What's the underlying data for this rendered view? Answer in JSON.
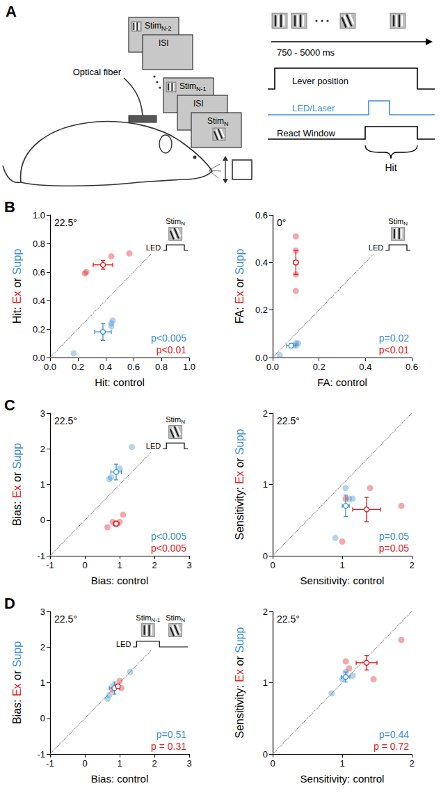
{
  "panel_a": {
    "letter": "A",
    "fiber_label": "Optical fiber",
    "screens": [
      {
        "text": "Stim",
        "sub": "N-2",
        "angle": 0
      },
      {
        "text": "ISI"
      },
      {
        "text": "Stim",
        "sub": "N-1",
        "angle": 0
      },
      {
        "text": "ISI"
      },
      {
        "text": "Stim",
        "sub": "N",
        "angle": 22.5
      }
    ],
    "timeline": {
      "stimuli": [
        0,
        0,
        22.5,
        0
      ],
      "duration": "750 - 5000 ms",
      "traces": [
        {
          "label": "Lever position",
          "color": "#000000"
        },
        {
          "label": "LED/Laser",
          "color": "#3b8fd4"
        },
        {
          "label": "React Window",
          "color": "#000000"
        }
      ],
      "hit": "Hit"
    }
  },
  "chart_data": [
    {
      "panel": "B",
      "type": "scatter",
      "annotation": "22.5°",
      "xlabel": "Hit: control",
      "ylabel": "Hit: Ex or Supp",
      "xlim": [
        0,
        1
      ],
      "xticks": [
        {
          "value": 0,
          "label": "0.0"
        },
        0.2,
        0.4,
        0.6,
        0.8,
        {
          "value": 1,
          "label": "1.0"
        }
      ],
      "ylim": [
        0,
        1
      ],
      "yticks": [
        {
          "value": 0,
          "label": "0.0"
        },
        0.2,
        0.4,
        0.6,
        0.8,
        {
          "value": 1,
          "label": "1.0"
        }
      ],
      "grid": false,
      "inset": {
        "led_label": "LED",
        "stimuli": [
          {
            "text": "Stim",
            "sub": "N",
            "angle": 22.5,
            "led": true
          }
        ]
      },
      "series": [
        {
          "name": "Supp",
          "color": "#3b8fd4",
          "values": [
            [
              0.17,
              0.03
            ],
            [
              0.44,
              0.22
            ],
            [
              0.44,
              0.24
            ],
            [
              0.45,
              0.26
            ]
          ],
          "mean": [
            0.38,
            0.18
          ],
          "error": [
            0.06,
            0.06
          ],
          "p_label": "p<0.005"
        },
        {
          "name": "Ex",
          "color": "#e41a1c",
          "values": [
            [
              0.25,
              0.59
            ],
            [
              0.26,
              0.6
            ],
            [
              0.44,
              0.71
            ],
            [
              0.57,
              0.73
            ]
          ],
          "mean": [
            0.38,
            0.65
          ],
          "error": [
            0.07,
            0.03
          ],
          "p_label": "p<0.01"
        }
      ]
    },
    {
      "type": "scatter",
      "annotation": "0°",
      "xlabel": "FA: control",
      "ylabel": "FA: Ex or Supp",
      "xlim": [
        0,
        0.6
      ],
      "xticks": [
        {
          "value": 0,
          "label": "0.0"
        },
        0.2,
        0.4,
        0.6
      ],
      "ylim": [
        0,
        0.6
      ],
      "yticks": [
        {
          "value": 0,
          "label": "0.0"
        },
        0.2,
        0.4,
        0.6
      ],
      "grid": false,
      "inset": {
        "led_label": "LED",
        "stimuli": [
          {
            "text": "Stim",
            "sub": "N",
            "angle": 0,
            "led": true
          }
        ]
      },
      "series": [
        {
          "name": "Supp",
          "color": "#3b8fd4",
          "values": [
            [
              0.03,
              0.01
            ],
            [
              0.1,
              0.06
            ],
            [
              0.11,
              0.06
            ],
            [
              0.1,
              0.05
            ]
          ],
          "mean": [
            0.08,
            0.05
          ],
          "error": [
            0.02,
            0.01
          ],
          "p_label": "p=0.02"
        },
        {
          "name": "Ex",
          "color": "#e41a1c",
          "values": [
            [
              0.1,
              0.28
            ],
            [
              0.1,
              0.35
            ],
            [
              0.1,
              0.45
            ],
            [
              0.1,
              0.51
            ],
            [
              0.1,
              0.4
            ]
          ],
          "mean": [
            0.1,
            0.4
          ],
          "error": [
            0.01,
            0.05
          ],
          "p_label": "p<0.01"
        }
      ]
    },
    {
      "panel": "C",
      "type": "scatter",
      "annotation": "22.5°",
      "xlabel": "Bias: control",
      "ylabel": "Bias: Ex or Supp",
      "xlim": [
        -1,
        3
      ],
      "xticks": [
        -1,
        0,
        1,
        2,
        3
      ],
      "ylim": [
        -1,
        3
      ],
      "yticks": [
        -1,
        0,
        1,
        2,
        3
      ],
      "grid": false,
      "inset": {
        "led_label": "LED",
        "stimuli": [
          {
            "text": "Stim",
            "sub": "N",
            "angle": 22.5,
            "led": true
          }
        ]
      },
      "series": [
        {
          "name": "Supp",
          "color": "#3b8fd4",
          "values": [
            [
              0.7,
              1.15
            ],
            [
              0.75,
              1.2
            ],
            [
              1.0,
              1.45
            ],
            [
              1.35,
              2.05
            ]
          ],
          "mean": [
            0.9,
            1.35
          ],
          "error": [
            0.15,
            0.22
          ],
          "p_label": "p<0.005"
        },
        {
          "name": "Ex",
          "color": "#e41a1c",
          "values": [
            [
              0.65,
              -0.2
            ],
            [
              0.8,
              -0.05
            ],
            [
              0.9,
              -0.1
            ],
            [
              1.0,
              -0.05
            ],
            [
              1.1,
              0.15
            ]
          ],
          "mean": [
            0.9,
            -0.1
          ],
          "error": [
            0.08,
            0.07
          ],
          "p_label": "p<0.005"
        }
      ]
    },
    {
      "type": "scatter",
      "annotation": "22.5°",
      "xlabel": "Sensitivity: control",
      "ylabel": "Sensitivity: Ex or Supp",
      "xlim": [
        0,
        2
      ],
      "xticks": [
        0,
        1,
        2
      ],
      "ylim": [
        0,
        2
      ],
      "yticks": [
        0,
        1,
        2
      ],
      "grid": false,
      "series": [
        {
          "name": "Supp",
          "color": "#3b8fd4",
          "values": [
            [
              0.9,
              0.25
            ],
            [
              1.05,
              0.95
            ],
            [
              1.1,
              0.8
            ],
            [
              1.15,
              0.8
            ]
          ],
          "mean": [
            1.05,
            0.7
          ],
          "error": [
            0.05,
            0.15
          ],
          "p_label": "p=0.05"
        },
        {
          "name": "Ex",
          "color": "#e41a1c",
          "values": [
            [
              1.0,
              0.2
            ],
            [
              1.05,
              0.8
            ],
            [
              1.4,
              0.95
            ],
            [
              1.85,
              0.7
            ]
          ],
          "mean": [
            1.35,
            0.65
          ],
          "error": [
            0.2,
            0.17
          ],
          "p_label": "p=0.05"
        }
      ]
    },
    {
      "panel": "D",
      "type": "scatter",
      "annotation": "22.5°",
      "xlabel": "Bias: control",
      "ylabel": "Bias: Ex or Supp",
      "xlim": [
        -1,
        3
      ],
      "xticks": [
        -1,
        0,
        1,
        2,
        3
      ],
      "ylim": [
        -1,
        3
      ],
      "yticks": [
        -1,
        0,
        1,
        2,
        3
      ],
      "grid": false,
      "inset": {
        "led_label": "LED",
        "stimuli": [
          {
            "text": "Stim",
            "sub": "N-1",
            "angle": 0,
            "led": true
          },
          {
            "text": "Stim",
            "sub": "N",
            "angle": 22.5,
            "led": false
          }
        ]
      },
      "series": [
        {
          "name": "Supp",
          "color": "#3b8fd4",
          "values": [
            [
              0.65,
              0.55
            ],
            [
              0.7,
              0.65
            ],
            [
              0.8,
              0.9
            ],
            [
              1.3,
              1.3
            ]
          ],
          "mean": [
            0.85,
            0.85
          ],
          "error": [
            0.15,
            0.17
          ],
          "p_label": "p=0.51"
        },
        {
          "name": "Ex",
          "color": "#e41a1c",
          "values": [
            [
              0.8,
              0.8
            ],
            [
              0.9,
              0.9
            ],
            [
              1.0,
              1.05
            ],
            [
              1.05,
              0.85
            ]
          ],
          "mean": [
            0.95,
            0.9
          ],
          "error": [
            0.05,
            0.05
          ],
          "p_label": "p = 0.31"
        }
      ]
    },
    {
      "type": "scatter",
      "annotation": "22.5°",
      "xlabel": "Sensitivity: control",
      "ylabel": "Sensitivity: Ex or Supp",
      "xlim": [
        0,
        2
      ],
      "xticks": [
        0,
        1,
        2
      ],
      "ylim": [
        0,
        2
      ],
      "yticks": [
        0,
        1,
        2
      ],
      "grid": false,
      "series": [
        {
          "name": "Supp",
          "color": "#3b8fd4",
          "values": [
            [
              0.85,
              0.85
            ],
            [
              1.0,
              1.05
            ],
            [
              1.05,
              1.15
            ],
            [
              1.15,
              1.1
            ]
          ],
          "mean": [
            1.05,
            1.08
          ],
          "error": [
            0.06,
            0.07
          ],
          "p_label": "p=0.44"
        },
        {
          "name": "Ex",
          "color": "#e41a1c",
          "values": [
            [
              1.05,
              1.3
            ],
            [
              1.1,
              1.2
            ],
            [
              1.45,
              1.05
            ],
            [
              1.85,
              1.6
            ]
          ],
          "mean": [
            1.35,
            1.28
          ],
          "error": [
            0.15,
            0.1
          ],
          "p_label": "p = 0.72"
        }
      ]
    }
  ]
}
